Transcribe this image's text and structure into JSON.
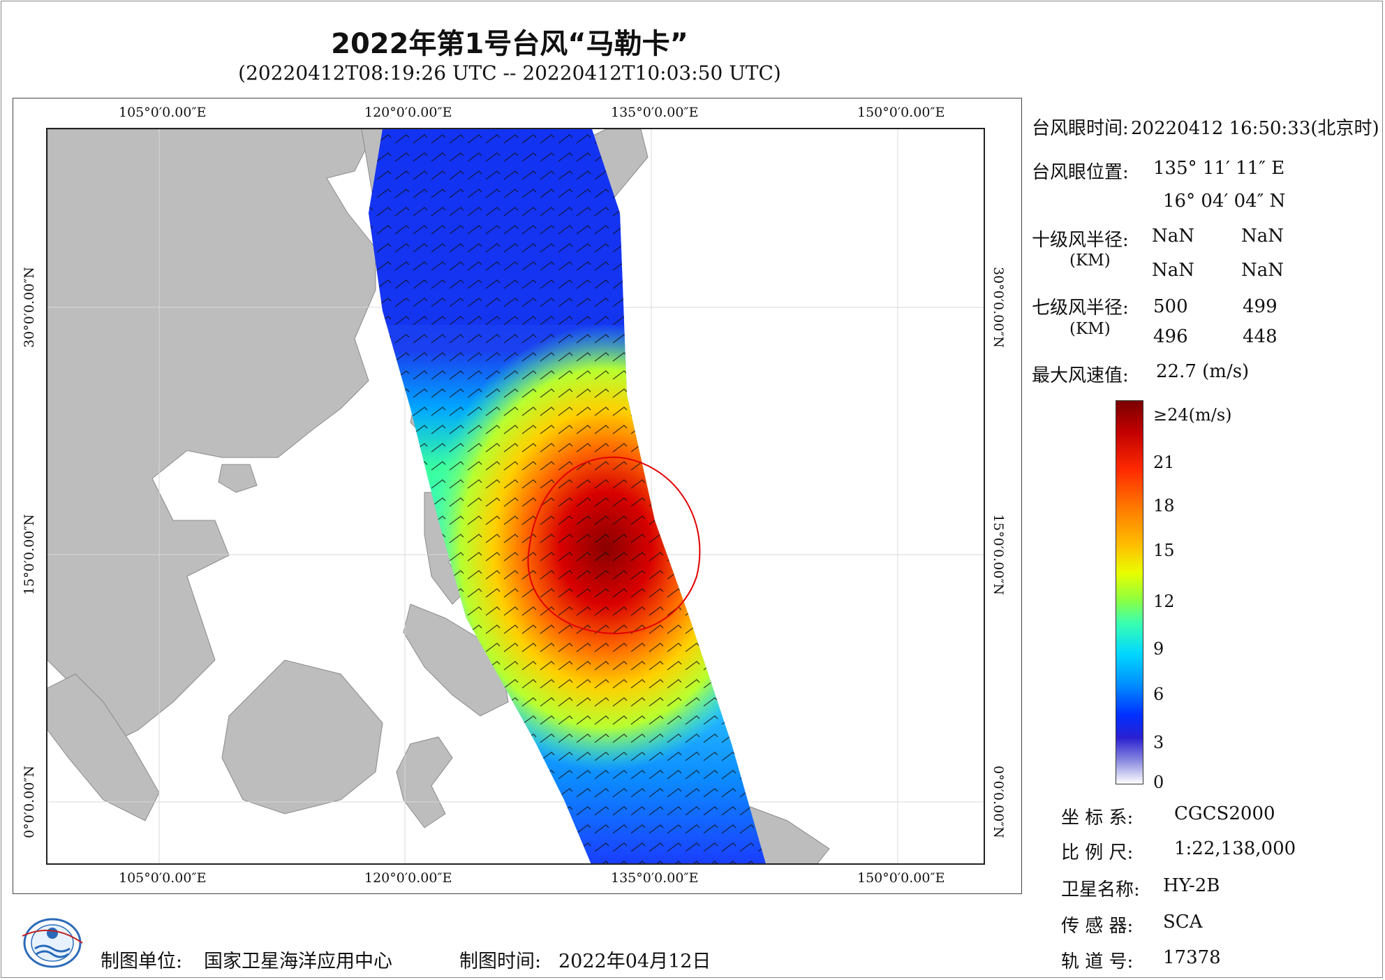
{
  "title": "2022年第1号台风“马勒卡”",
  "subtitle": "(20220412T08:19:26 UTC -- 20220412T10:03:50 UTC)",
  "axes": {
    "top_lon": [
      "105°0′0.00″E",
      "120°0′0.00″E",
      "135°0′0.00″E",
      "150°0′0.00″E"
    ],
    "bottom_lon": [
      "105°0′0.00″E",
      "120°0′0.00″E",
      "135°0′0.00″E",
      "150°0′0.00″E"
    ],
    "left_lat": [
      "30°0′0.00″N",
      "15°0′0.00″N",
      "0°0′0.00″N"
    ],
    "right_lat": [
      "30°0′0.00″N",
      "15°0′0.00″N",
      "0°0′0.00″N"
    ]
  },
  "info": {
    "eye_time_label": "台风眼时间:",
    "eye_time_value": "20220412 16:50:33(北京时)",
    "eye_pos_label": "台风眼位置:",
    "eye_lon": "135° 11′ 11″ E",
    "eye_lat": "16° 04′ 04″ N",
    "r10_label": "十级风半径:",
    "r10_unit": "(KM)",
    "r10_values": [
      "NaN",
      "NaN",
      "NaN",
      "NaN"
    ],
    "r7_label": "七级风半径:",
    "r7_unit": "(KM)",
    "r7_values": [
      "500",
      "499",
      "496",
      "448"
    ],
    "max_wind_label": "最大风速值:",
    "max_wind_value": "22.7  (m/s)"
  },
  "colorbar": {
    "labels": [
      "≥24(m/s)",
      "21",
      "18",
      "15",
      "12",
      "9",
      "6",
      "3",
      "0"
    ]
  },
  "meta": {
    "crs_label": "坐 标 系:",
    "crs_value": "CGCS2000",
    "scale_label": "比 例 尺:",
    "scale_value": "1:22,138,000",
    "sat_label": "卫星名称:",
    "sat_value": "HY-2B",
    "sensor_label": "传 感 器:",
    "sensor_value": "SCA",
    "orbit_label": "轨 道 号:",
    "orbit_value": "17378"
  },
  "footer": {
    "org_label": "制图单位:",
    "org_value": "国家卫星海洋应用中心",
    "date_label": "制图时间:",
    "date_value": "2022年04月12日"
  },
  "colors": {
    "land": "#bdbdbd",
    "ocean": "#ffffff",
    "track_edge": "#1a2cff",
    "core": "#b00000",
    "r7_circle": "#e00000"
  }
}
